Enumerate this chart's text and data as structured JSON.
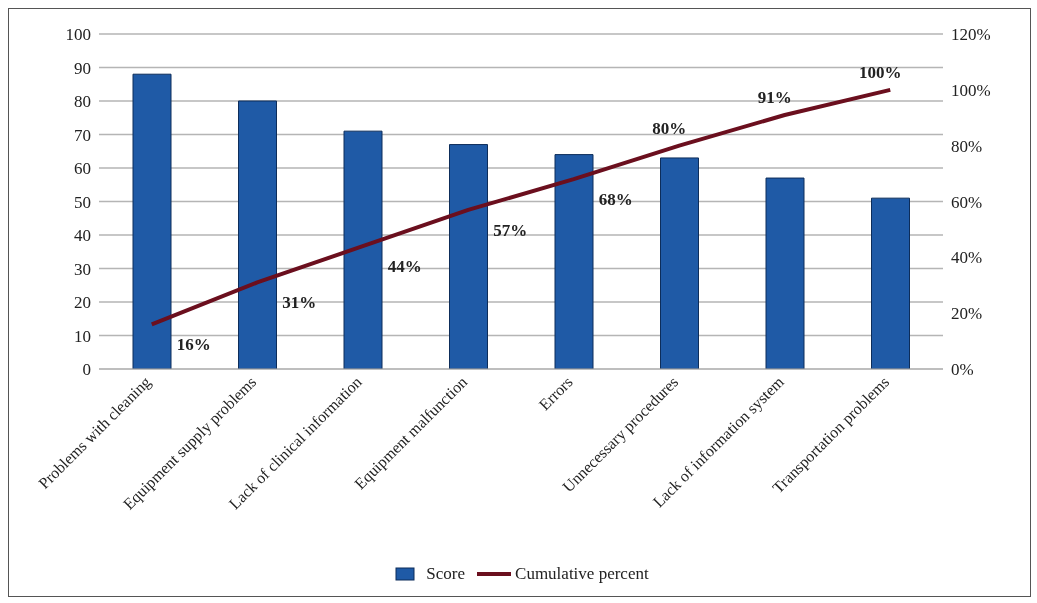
{
  "chart_data": {
    "type": "bar",
    "categories": [
      "Problems with cleaning",
      "Equipment supply problems",
      "Lack of clinical information",
      "Equipment malfunction",
      "Errors",
      "Unnecessary procedures",
      "Lack of information system",
      "Transportation problems"
    ],
    "series": [
      {
        "name": "Score",
        "color": "#1f5aa6",
        "values": [
          88,
          80,
          71,
          67,
          64,
          63,
          57,
          51
        ]
      },
      {
        "name": "Cumulative percent",
        "type": "line",
        "axis": "y2",
        "color": "#6b0f1e",
        "values": [
          16,
          31,
          44,
          57,
          68,
          80,
          91,
          100
        ],
        "value_labels": [
          "16%",
          "31%",
          "44%",
          "57%",
          "68%",
          "80%",
          "91%",
          "100%"
        ]
      }
    ],
    "ylim": [
      0,
      100
    ],
    "yticks": [
      0,
      10,
      20,
      30,
      40,
      50,
      60,
      70,
      80,
      90,
      100
    ],
    "y2lim": [
      0,
      120
    ],
    "y2ticks": [
      {
        "value": 0,
        "label": "0%"
      },
      {
        "value": 20,
        "label": "20%"
      },
      {
        "value": 40,
        "label": "40%"
      },
      {
        "value": 60,
        "label": "60%"
      },
      {
        "value": 80,
        "label": "80%"
      },
      {
        "value": 100,
        "label": "100%"
      },
      {
        "value": 120,
        "label": "120%"
      }
    ],
    "grid": "y",
    "legend": "bottom",
    "marker": "none",
    "line_style": "solid"
  }
}
